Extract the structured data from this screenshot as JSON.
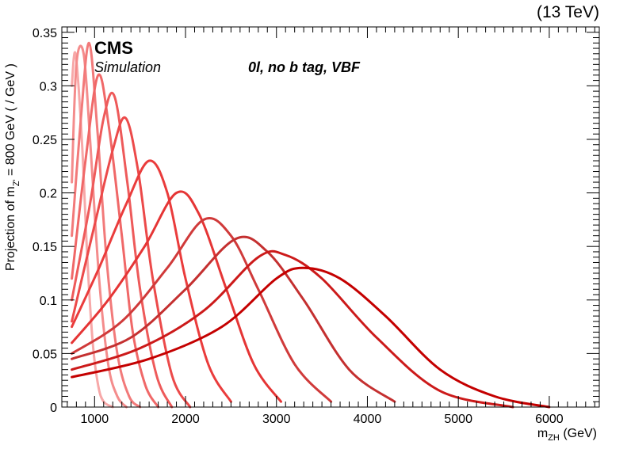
{
  "energy_label": "(13 TeV)",
  "experiment": "CMS",
  "simulation_label": "Simulation",
  "category_label": "0l, no b tag, VBF",
  "chart_data": {
    "type": "line",
    "xlabel_main": "m",
    "xlabel_sub": "ZH",
    "xlabel_unit": " (GeV)",
    "ylabel_main": "Projection of m",
    "ylabel_sub": "Z'",
    "ylabel_tail": " = 800 GeV ( / GeV )",
    "xlim": [
      640,
      6550
    ],
    "ylim": [
      0,
      0.355
    ],
    "x_ticks": [
      1000,
      2000,
      3000,
      4000,
      5000,
      6000
    ],
    "x_tick_labels": [
      "1000",
      "2000",
      "3000",
      "4000",
      "5000",
      "6000"
    ],
    "y_ticks": [
      0,
      0.05,
      0.1,
      0.15,
      0.2,
      0.25,
      0.3,
      0.35
    ],
    "y_tick_labels": [
      "0",
      "0.05",
      "0.1",
      "0.15",
      "0.2",
      "0.25",
      "0.3",
      "0.35"
    ],
    "grid": false,
    "legend": "none",
    "series": [
      {
        "color": "#f7a8a8",
        "x": [
          750,
          790,
          860,
          920,
          980,
          1040,
          1100,
          1200
        ],
        "y": [
          0.3,
          0.33,
          0.25,
          0.14,
          0.06,
          0.02,
          0.005,
          0.0
        ]
      },
      {
        "color": "#f48c8c",
        "x": [
          750,
          800,
          880,
          950,
          1050,
          1150,
          1250,
          1350
        ],
        "y": [
          0.21,
          0.32,
          0.33,
          0.25,
          0.12,
          0.04,
          0.01,
          0.0
        ]
      },
      {
        "color": "#f27a7a",
        "x": [
          750,
          850,
          940,
          1030,
          1130,
          1250,
          1380,
          1500
        ],
        "y": [
          0.16,
          0.27,
          0.34,
          0.26,
          0.14,
          0.05,
          0.01,
          0.0
        ]
      },
      {
        "color": "#f06868",
        "x": [
          750,
          900,
          1040,
          1160,
          1300,
          1420,
          1560,
          1700
        ],
        "y": [
          0.12,
          0.23,
          0.31,
          0.26,
          0.16,
          0.07,
          0.02,
          0.0
        ]
      },
      {
        "color": "#ee5a5a",
        "x": [
          750,
          950,
          1100,
          1220,
          1360,
          1500,
          1680,
          1850
        ],
        "y": [
          0.1,
          0.19,
          0.27,
          0.29,
          0.21,
          0.11,
          0.03,
          0.0
        ]
      },
      {
        "color": "#ec4a4a",
        "x": [
          750,
          1000,
          1200,
          1340,
          1480,
          1640,
          1850,
          2050
        ],
        "y": [
          0.08,
          0.17,
          0.24,
          0.27,
          0.22,
          0.12,
          0.03,
          0.0
        ]
      },
      {
        "color": "#ea3c3c",
        "x": [
          750,
          1050,
          1350,
          1600,
          1800,
          2000,
          2250,
          2500
        ],
        "y": [
          0.075,
          0.13,
          0.19,
          0.23,
          0.2,
          0.12,
          0.04,
          0.005
        ]
      },
      {
        "color": "#e53535",
        "x": [
          750,
          1150,
          1550,
          1900,
          2150,
          2450,
          2750,
          3050
        ],
        "y": [
          0.06,
          0.1,
          0.15,
          0.2,
          0.18,
          0.11,
          0.04,
          0.005
        ]
      },
      {
        "color": "#d03a3a",
        "x": [
          750,
          1300,
          1800,
          2200,
          2500,
          2800,
          3200,
          3600
        ],
        "y": [
          0.05,
          0.08,
          0.13,
          0.175,
          0.16,
          0.11,
          0.04,
          0.005
        ]
      },
      {
        "color": "#c43030",
        "x": [
          750,
          1400,
          2000,
          2550,
          2900,
          3300,
          3800,
          4300
        ],
        "y": [
          0.045,
          0.065,
          0.11,
          0.157,
          0.145,
          0.1,
          0.035,
          0.005
        ]
      },
      {
        "color": "#cc1a1a",
        "x": [
          750,
          1500,
          2200,
          2800,
          3100,
          3500,
          4100,
          4800,
          5600
        ],
        "y": [
          0.035,
          0.055,
          0.09,
          0.14,
          0.142,
          0.12,
          0.065,
          0.015,
          0.0
        ]
      },
      {
        "color": "#c40000",
        "x": [
          750,
          1600,
          2400,
          3000,
          3300,
          3700,
          4200,
          4800,
          5400,
          6000
        ],
        "y": [
          0.028,
          0.045,
          0.075,
          0.12,
          0.13,
          0.12,
          0.085,
          0.035,
          0.01,
          0.0
        ]
      }
    ]
  }
}
